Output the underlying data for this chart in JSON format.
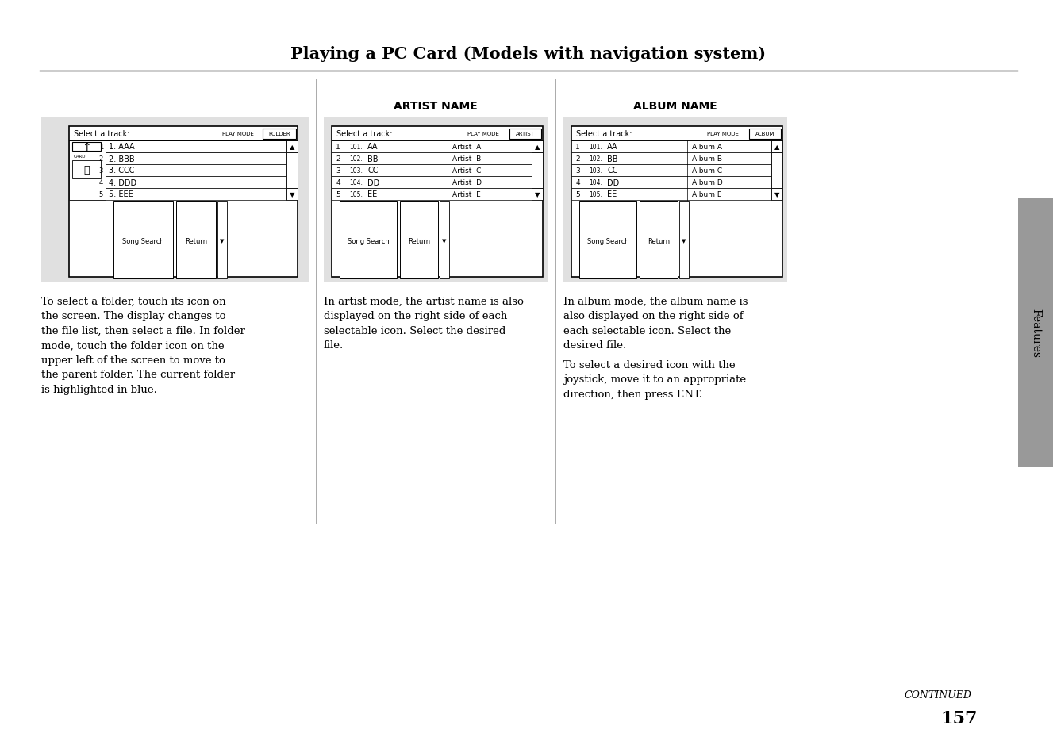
{
  "title": "Playing a PC Card (Models with navigation system)",
  "bg_color": "#ffffff",
  "panel_bg": "#e8e8e8",
  "border_color": "#000000",
  "text_color": "#000000",
  "panel1": {
    "mode_label": "PLAY MODE",
    "mode_btn": "FOLDER",
    "header": "Select a track:",
    "tracks": [
      "1. AAA",
      "2. BBB",
      "3. CCC",
      "4. DDD",
      "5. EEE"
    ],
    "track_nums": [
      "1",
      "2",
      "3",
      "4",
      "5"
    ],
    "btn1": "Song Search",
    "btn2": "Return"
  },
  "panel2": {
    "title": "ARTIST NAME",
    "mode_label": "PLAY MODE",
    "mode_btn": "ARTIST",
    "header": "Select a track:",
    "rows": [
      {
        "num": "1",
        "code": "101.",
        "name": "AA",
        "right": "Artist  A"
      },
      {
        "num": "2",
        "code": "102.",
        "name": "BB",
        "right": "Artist  B"
      },
      {
        "num": "3",
        "code": "103.",
        "name": "CC",
        "right": "Artist  C"
      },
      {
        "num": "4",
        "code": "104.",
        "name": "DD",
        "right": "Artist  D"
      },
      {
        "num": "5",
        "code": "105.",
        "name": "EE",
        "right": "Artist  E"
      }
    ],
    "btn1": "Song Search",
    "btn2": "Return"
  },
  "panel3": {
    "title": "ALBUM NAME",
    "mode_label": "PLAY MODE",
    "mode_btn": "ALBUM",
    "header": "Select a track:",
    "rows": [
      {
        "num": "1",
        "code": "101.",
        "name": "AA",
        "right": "Album A"
      },
      {
        "num": "2",
        "code": "102.",
        "name": "BB",
        "right": "Album B"
      },
      {
        "num": "3",
        "code": "103.",
        "name": "CC",
        "right": "Album C"
      },
      {
        "num": "4",
        "code": "104.",
        "name": "DD",
        "right": "Album D"
      },
      {
        "num": "5",
        "code": "105.",
        "name": "EE",
        "right": "Album E"
      }
    ],
    "btn1": "Song Search",
    "btn2": "Return"
  },
  "text1": "To select a folder, touch its icon on\nthe screen. The display changes to\nthe file list, then select a file. In folder\nmode, touch the folder icon on the\nupper left of the screen to move to\nthe parent folder. The current folder\nis highlighted in blue.",
  "text2": "In artist mode, the artist name is also\ndisplayed on the right side of each\nselectable icon. Select the desired\nfile.",
  "text3_1": "In album mode, the album name is\nalso displayed on the right side of\neach selectable icon. Select the\ndesired file.",
  "text3_2": "To select a desired icon with the\njoystick, move it to an appropriate\ndirection, then press ENT.",
  "continued": "CONTINUED",
  "page_num": "157",
  "sidebar_color": "#888888"
}
